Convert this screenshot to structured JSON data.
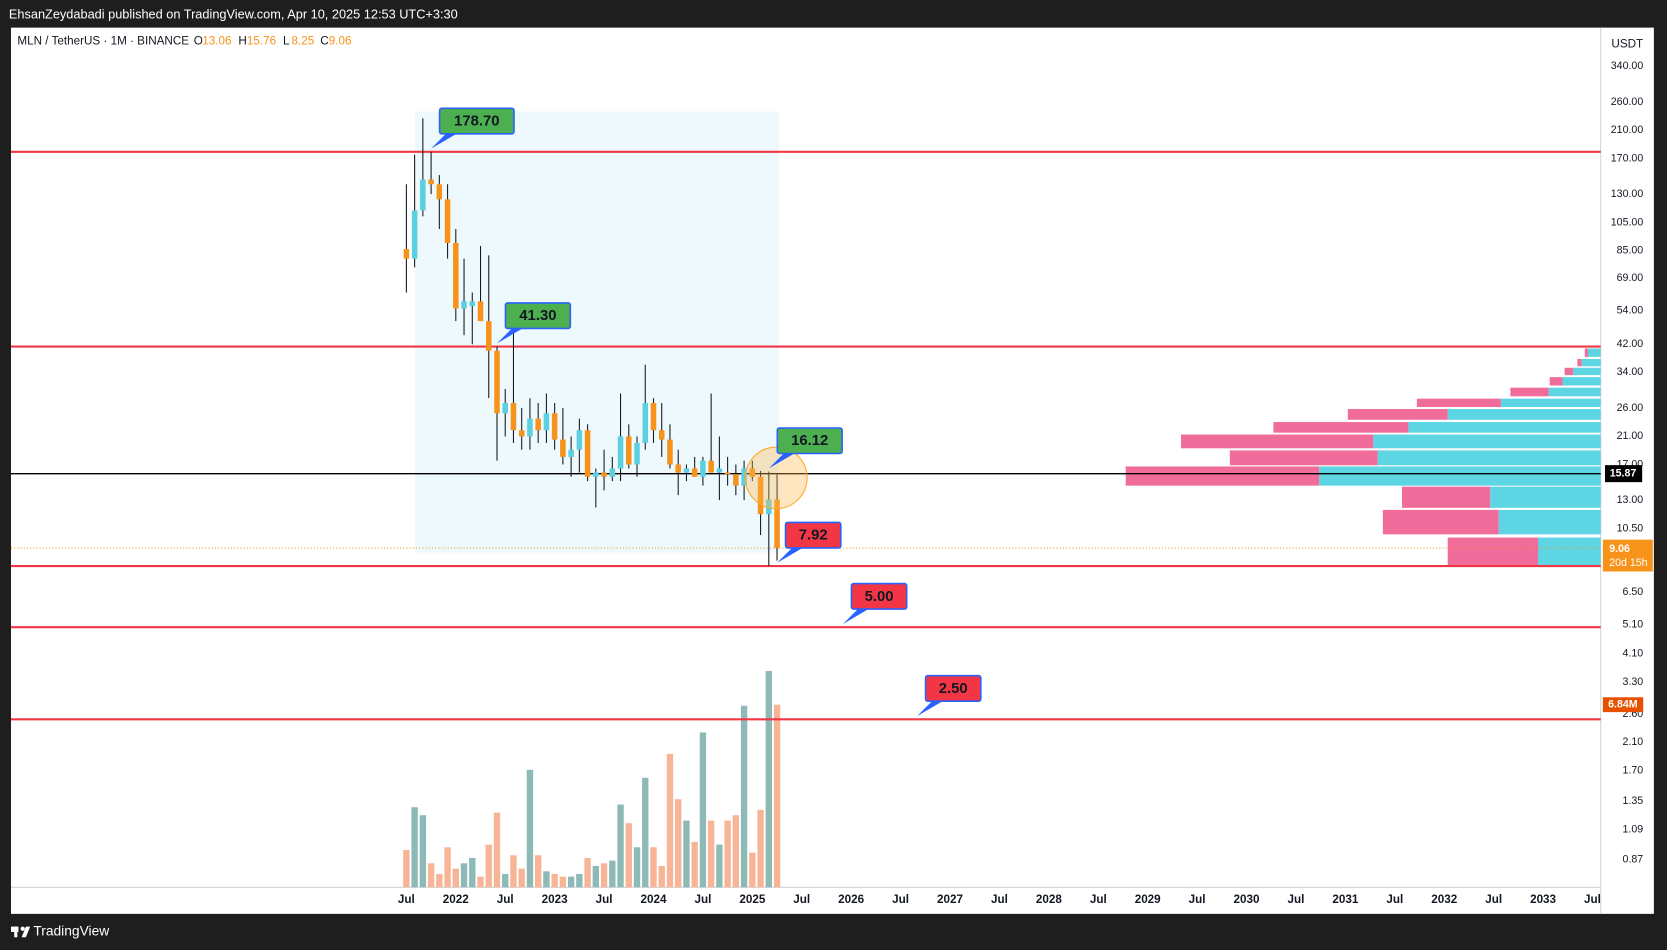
{
  "header": {
    "publisher": "EhsanZeydabadi published on TradingView.com, Apr 10, 2025 12:53 UTC+3:30",
    "brand": "TradingView"
  },
  "chart_data": {
    "type": "candlestick",
    "title": "MLN / TetherUS · 1M · BINANCE",
    "legend_labels": [
      "O",
      "H",
      "L",
      "C"
    ],
    "y_unit": "USDT",
    "log_scale": true,
    "ylim": [
      0.706,
      455
    ],
    "yticks": [
      {
        "value": 340,
        "label": "340.00"
      },
      {
        "value": 260,
        "label": "260.00"
      },
      {
        "value": 210,
        "label": "210.00"
      },
      {
        "value": 170,
        "label": "170.00"
      },
      {
        "value": 130,
        "label": "130.00"
      },
      {
        "value": 105,
        "label": "105.00"
      },
      {
        "value": 85,
        "label": "85.00"
      },
      {
        "value": 69,
        "label": "69.00"
      },
      {
        "value": 54,
        "label": "54.00"
      },
      {
        "value": 42,
        "label": "42.00"
      },
      {
        "value": 34,
        "label": "34.00"
      },
      {
        "value": 26,
        "label": "26.00"
      },
      {
        "value": 21,
        "label": "21.00"
      },
      {
        "value": 17,
        "label": "17.00"
      },
      {
        "value": 13,
        "label": "13.00"
      },
      {
        "value": 10.5,
        "label": "10.50"
      },
      {
        "value": 6.5,
        "label": "6.50"
      },
      {
        "value": 5.1,
        "label": "5.10"
      },
      {
        "value": 4.1,
        "label": "4.10"
      },
      {
        "value": 3.3,
        "label": "3.30"
      },
      {
        "value": 2.6,
        "label": "2.60"
      },
      {
        "value": 2.1,
        "label": "2.10"
      },
      {
        "value": 1.7,
        "label": "1.70"
      },
      1.35,
      1.09,
      0.87
    ],
    "xlim": [
      -48,
      145
    ],
    "xticks": [
      {
        "value": 0,
        "label": "Jul"
      },
      {
        "value": 6,
        "label": "2022"
      },
      {
        "value": 12,
        "label": "Jul"
      },
      {
        "value": 18,
        "label": "2023"
      },
      {
        "value": 24,
        "label": "Jul"
      },
      {
        "value": 30,
        "label": "2024"
      },
      {
        "value": 36,
        "label": "Jul"
      },
      {
        "value": 42,
        "label": "2025"
      },
      {
        "value": 48,
        "label": "Jul"
      },
      {
        "value": 54,
        "label": "2026"
      },
      {
        "value": 60,
        "label": "Jul"
      },
      {
        "value": 66,
        "label": "2027"
      },
      {
        "value": 72,
        "label": "Jul"
      },
      {
        "value": 78,
        "label": "2028"
      },
      {
        "value": 84,
        "label": "Jul"
      },
      {
        "value": 90,
        "label": "2029"
      },
      {
        "value": 96,
        "label": "Jul"
      },
      {
        "value": 102,
        "label": "2030"
      },
      {
        "value": 108,
        "label": "Jul"
      },
      {
        "value": 114,
        "label": "2031"
      },
      {
        "value": 120,
        "label": "Jul"
      },
      {
        "value": 126,
        "label": "2032"
      },
      {
        "value": 132,
        "label": "Jul"
      },
      {
        "value": 138,
        "label": "2033"
      },
      {
        "value": 144,
        "label": "Jul"
      }
    ],
    "up_color": "#5ccfe0",
    "down_color": "#f7931a",
    "candles": [
      {
        "open": 86,
        "high": 140,
        "low": 62,
        "close": 80
      },
      {
        "open": 80,
        "high": 175,
        "low": 75,
        "close": 115
      },
      {
        "open": 115,
        "high": 230,
        "low": 110,
        "close": 145
      },
      {
        "open": 145,
        "high": 178.7,
        "low": 130,
        "close": 140
      },
      {
        "open": 140,
        "high": 150,
        "low": 100,
        "close": 125
      },
      {
        "open": 125,
        "high": 140,
        "low": 80,
        "close": 90
      },
      {
        "open": 90,
        "high": 100,
        "low": 50,
        "close": 55
      },
      {
        "open": 55,
        "high": 80,
        "low": 45,
        "close": 58
      },
      {
        "open": 56,
        "high": 62,
        "low": 42,
        "close": 58
      },
      {
        "open": 58,
        "high": 88,
        "low": 50,
        "close": 50
      },
      {
        "open": 50,
        "high": 82,
        "low": 28,
        "close": 40
      },
      {
        "open": 40,
        "high": 41.3,
        "low": 17.5,
        "close": 25
      },
      {
        "open": 25,
        "high": 30,
        "low": 21,
        "close": 27
      },
      {
        "open": 27,
        "high": 51,
        "low": 20,
        "close": 22
      },
      {
        "open": 22,
        "high": 26,
        "low": 19,
        "close": 21
      },
      {
        "open": 21,
        "high": 28,
        "low": 19,
        "close": 24
      },
      {
        "open": 24,
        "high": 27,
        "low": 20,
        "close": 22
      },
      {
        "open": 22,
        "high": 29,
        "low": 20,
        "close": 25
      },
      {
        "open": 25,
        "high": 27,
        "low": 19,
        "close": 20.5
      },
      {
        "open": 20.5,
        "high": 26,
        "low": 17,
        "close": 18
      },
      {
        "open": 18,
        "high": 21,
        "low": 15.5,
        "close": 19
      },
      {
        "open": 19,
        "high": 24,
        "low": 16,
        "close": 22
      },
      {
        "open": 22,
        "high": 23,
        "low": 15,
        "close": 15.5
      },
      {
        "open": 15.5,
        "high": 16.5,
        "low": 12.3,
        "close": 16
      },
      {
        "open": 16,
        "high": 19,
        "low": 14,
        "close": 15.5
      },
      {
        "open": 15.5,
        "high": 18,
        "low": 15,
        "close": 16.5
      },
      {
        "open": 16.5,
        "high": 29,
        "low": 15,
        "close": 21
      },
      {
        "open": 21,
        "high": 23,
        "low": 16.5,
        "close": 17
      },
      {
        "open": 17,
        "high": 21,
        "low": 15.5,
        "close": 20
      },
      {
        "open": 20,
        "high": 36,
        "low": 19,
        "close": 27
      },
      {
        "open": 27,
        "high": 28,
        "low": 20,
        "close": 22
      },
      {
        "open": 22,
        "high": 27,
        "low": 18,
        "close": 20.5
      },
      {
        "open": 20.5,
        "high": 23,
        "low": 16.5,
        "close": 17
      },
      {
        "open": 17,
        "high": 19,
        "low": 13.5,
        "close": 16
      },
      {
        "open": 16,
        "high": 17,
        "low": 15,
        "close": 16.5
      },
      {
        "open": 16.5,
        "high": 18,
        "low": 15.5,
        "close": 15.5
      },
      {
        "open": 15.5,
        "high": 18,
        "low": 14.5,
        "close": 17.5
      },
      {
        "open": 17.5,
        "high": 29,
        "low": 16,
        "close": 16
      },
      {
        "open": 16,
        "high": 21,
        "low": 13,
        "close": 16.5
      },
      {
        "open": 16,
        "high": 18,
        "low": 14.5,
        "close": 15.8
      },
      {
        "open": 15.8,
        "high": 17,
        "low": 13.5,
        "close": 14.5
      },
      {
        "open": 14.5,
        "high": 17.5,
        "low": 13,
        "close": 16.5
      },
      {
        "open": 16.5,
        "high": 17.5,
        "low": 15,
        "close": 15.5
      },
      {
        "open": 15.5,
        "high": 16.2,
        "low": 10,
        "close": 11.7
      },
      {
        "open": 11.7,
        "high": 16.12,
        "low": 7.92,
        "close": 13.06
      },
      {
        "open": 13.06,
        "high": 15.76,
        "low": 8.25,
        "close": 9.06
      }
    ],
    "volume": [
      1.4,
      3.0,
      2.7,
      0.9,
      0.5,
      1.5,
      0.7,
      0.9,
      1.1,
      0.4,
      1.6,
      2.8,
      0.5,
      1.2,
      0.7,
      4.4,
      1.2,
      0.6,
      0.5,
      0.4,
      0.4,
      0.5,
      1.1,
      0.8,
      0.9,
      1.0,
      3.1,
      2.4,
      1.5,
      4.1,
      1.5,
      0.8,
      5.0,
      3.3,
      2.5,
      1.7,
      5.8,
      2.5,
      1.6,
      2.5,
      2.7,
      6.8,
      1.3,
      2.9,
      8.1,
      6.84
    ],
    "volume_ylim": [
      0,
      32.2
    ],
    "volume_up_color": "#8dbab6",
    "volume_down_color": "#f8b496",
    "volume_label": "6.84M",
    "hline": {
      "value": 15.87,
      "color": "#000000"
    },
    "countdown": "20d 15h",
    "annotations": [
      {
        "label": "178.70",
        "value": 178.7,
        "x": 3,
        "color": "#4caf50",
        "line": true
      },
      {
        "label": "41.30",
        "value": 41.3,
        "x": 11,
        "color": "#4caf50",
        "line": true
      },
      {
        "label": "16.12",
        "value": 16.12,
        "x": 44,
        "color": "#4caf50",
        "line": false
      },
      {
        "label": "7.92",
        "value": 7.92,
        "x": 45,
        "color": "#f23645",
        "line": true
      },
      {
        "label": "5.00",
        "value": 5,
        "x": 53,
        "color": "#f23645",
        "line": true
      },
      {
        "label": "2.50",
        "value": 2.5,
        "x": 62,
        "color": "#f23645",
        "line": true
      }
    ],
    "level_color": "#f23645",
    "volume_profile": {
      "up_color": "#5dd5e3",
      "down_color": "#f06c9b",
      "rows": [
        {
          "low": 7.92,
          "high": 9.81,
          "up": 59,
          "down": 85
        },
        {
          "low": 10.05,
          "high": 12.08,
          "up": 96,
          "down": 109
        },
        {
          "low": 12.27,
          "high": 14.39,
          "up": 104,
          "down": 83
        },
        {
          "low": 14.5,
          "high": 16.75,
          "up": 265,
          "down": 182
        },
        {
          "low": 16.9,
          "high": 18.9,
          "up": 210,
          "down": 139
        },
        {
          "low": 19.2,
          "high": 21.3,
          "up": 214,
          "down": 181
        },
        {
          "low": 21.6,
          "high": 23.4,
          "up": 181,
          "down": 127
        },
        {
          "low": 23.8,
          "high": 25.8,
          "up": 144,
          "down": 94
        },
        {
          "low": 26.2,
          "high": 27.9,
          "up": 94,
          "down": 79
        },
        {
          "low": 28.4,
          "high": 30.3,
          "up": 49,
          "down": 36
        },
        {
          "low": 30.8,
          "high": 32.8,
          "up": 36,
          "down": 12
        },
        {
          "low": 33.3,
          "high": 35.2,
          "up": 26,
          "down": 8
        },
        {
          "low": 35.6,
          "high": 37.6,
          "up": 18,
          "down": 4
        },
        {
          "low": 38.2,
          "high": 40.7,
          "up": 12,
          "down": 3
        }
      ]
    }
  }
}
